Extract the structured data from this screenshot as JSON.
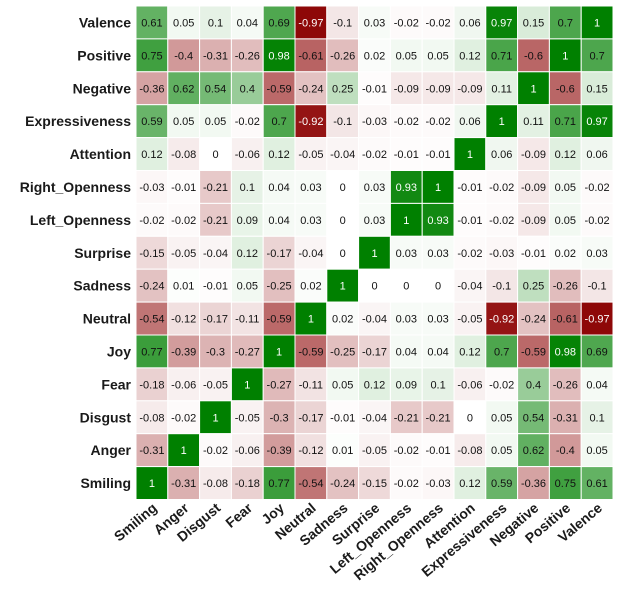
{
  "chart_data": {
    "type": "heatmap",
    "title": "",
    "xlabel": "",
    "ylabel": "",
    "rows": [
      "Valence",
      "Positive",
      "Negative",
      "Expressiveness",
      "Attention",
      "Right_Openness",
      "Left_Openness",
      "Surprise",
      "Sadness",
      "Neutral",
      "Joy",
      "Fear",
      "Disgust",
      "Anger",
      "Smiling"
    ],
    "columns": [
      "Smiling",
      "Anger",
      "Disgust",
      "Fear",
      "Joy",
      "Neutral",
      "Sadness",
      "Surprise",
      "Left_Openness",
      "Right_Openness",
      "Attention",
      "Expressiveness",
      "Negative",
      "Positive",
      "Valence"
    ],
    "values": [
      [
        "0.61",
        "0.05",
        "0.1",
        "0.04",
        "0.69",
        "-0.97",
        "-0.1",
        "0.03",
        "-0.02",
        "-0.02",
        "0.06",
        "0.97",
        "0.15",
        "0.7",
        "1"
      ],
      [
        "0.75",
        "-0.4",
        "-0.31",
        "-0.26",
        "0.98",
        "-0.61",
        "-0.26",
        "0.02",
        "0.05",
        "0.05",
        "0.12",
        "0.71",
        "-0.6",
        "1",
        "0.7"
      ],
      [
        "-0.36",
        "0.62",
        "0.54",
        "0.4",
        "-0.59",
        "-0.24",
        "0.25",
        "-0.01",
        "-0.09",
        "-0.09",
        "-0.09",
        "0.11",
        "1",
        "-0.6",
        "0.15"
      ],
      [
        "0.59",
        "0.05",
        "0.05",
        "-0.02",
        "0.7",
        "-0.92",
        "-0.1",
        "-0.03",
        "-0.02",
        "-0.02",
        "0.06",
        "1",
        "0.11",
        "0.71",
        "0.97"
      ],
      [
        "0.12",
        "-0.08",
        "0",
        "-0.06",
        "0.12",
        "-0.05",
        "-0.04",
        "-0.02",
        "-0.01",
        "-0.01",
        "1",
        "0.06",
        "-0.09",
        "0.12",
        "0.06"
      ],
      [
        "-0.03",
        "-0.01",
        "-0.21",
        "0.1",
        "0.04",
        "0.03",
        "0",
        "0.03",
        "0.93",
        "1",
        "-0.01",
        "-0.02",
        "-0.09",
        "0.05",
        "-0.02"
      ],
      [
        "-0.02",
        "-0.02",
        "-0.21",
        "0.09",
        "0.04",
        "0.03",
        "0",
        "0.03",
        "1",
        "0.93",
        "-0.01",
        "-0.02",
        "-0.09",
        "0.05",
        "-0.02"
      ],
      [
        "-0.15",
        "-0.05",
        "-0.04",
        "0.12",
        "-0.17",
        "-0.04",
        "0",
        "1",
        "0.03",
        "0.03",
        "-0.02",
        "-0.03",
        "-0.01",
        "0.02",
        "0.03"
      ],
      [
        "-0.24",
        "0.01",
        "-0.01",
        "0.05",
        "-0.25",
        "0.02",
        "1",
        "0",
        "0",
        "0",
        "-0.04",
        "-0.1",
        "0.25",
        "-0.26",
        "-0.1"
      ],
      [
        "-0.54",
        "-0.12",
        "-0.17",
        "-0.11",
        "-0.59",
        "1",
        "0.02",
        "-0.04",
        "0.03",
        "0.03",
        "-0.05",
        "-0.92",
        "-0.24",
        "-0.61",
        "-0.97"
      ],
      [
        "0.77",
        "-0.39",
        "-0.3",
        "-0.27",
        "1",
        "-0.59",
        "-0.25",
        "-0.17",
        "0.04",
        "0.04",
        "0.12",
        "0.7",
        "-0.59",
        "0.98",
        "0.69"
      ],
      [
        "-0.18",
        "-0.06",
        "-0.05",
        "1",
        "-0.27",
        "-0.11",
        "0.05",
        "0.12",
        "0.09",
        "0.1",
        "-0.06",
        "-0.02",
        "0.4",
        "-0.26",
        "0.04"
      ],
      [
        "-0.08",
        "-0.02",
        "1",
        "-0.05",
        "-0.3",
        "-0.17",
        "-0.01",
        "-0.04",
        "-0.21",
        "-0.21",
        "0",
        "0.05",
        "0.54",
        "-0.31",
        "0.1"
      ],
      [
        "-0.31",
        "1",
        "-0.02",
        "-0.06",
        "-0.39",
        "-0.12",
        "0.01",
        "-0.05",
        "-0.02",
        "-0.01",
        "-0.08",
        "0.05",
        "0.62",
        "-0.4",
        "0.05"
      ],
      [
        "1",
        "-0.31",
        "-0.08",
        "-0.18",
        "0.77",
        "-0.54",
        "-0.24",
        "-0.15",
        "-0.02",
        "-0.03",
        "0.12",
        "0.59",
        "-0.36",
        "0.75",
        "0.61"
      ]
    ],
    "value_range": [
      -1,
      1
    ],
    "colors": {
      "positive": "#008000",
      "negative": "#8b0000",
      "neutral": "#ffffff"
    },
    "grid": true,
    "legend": "none"
  }
}
